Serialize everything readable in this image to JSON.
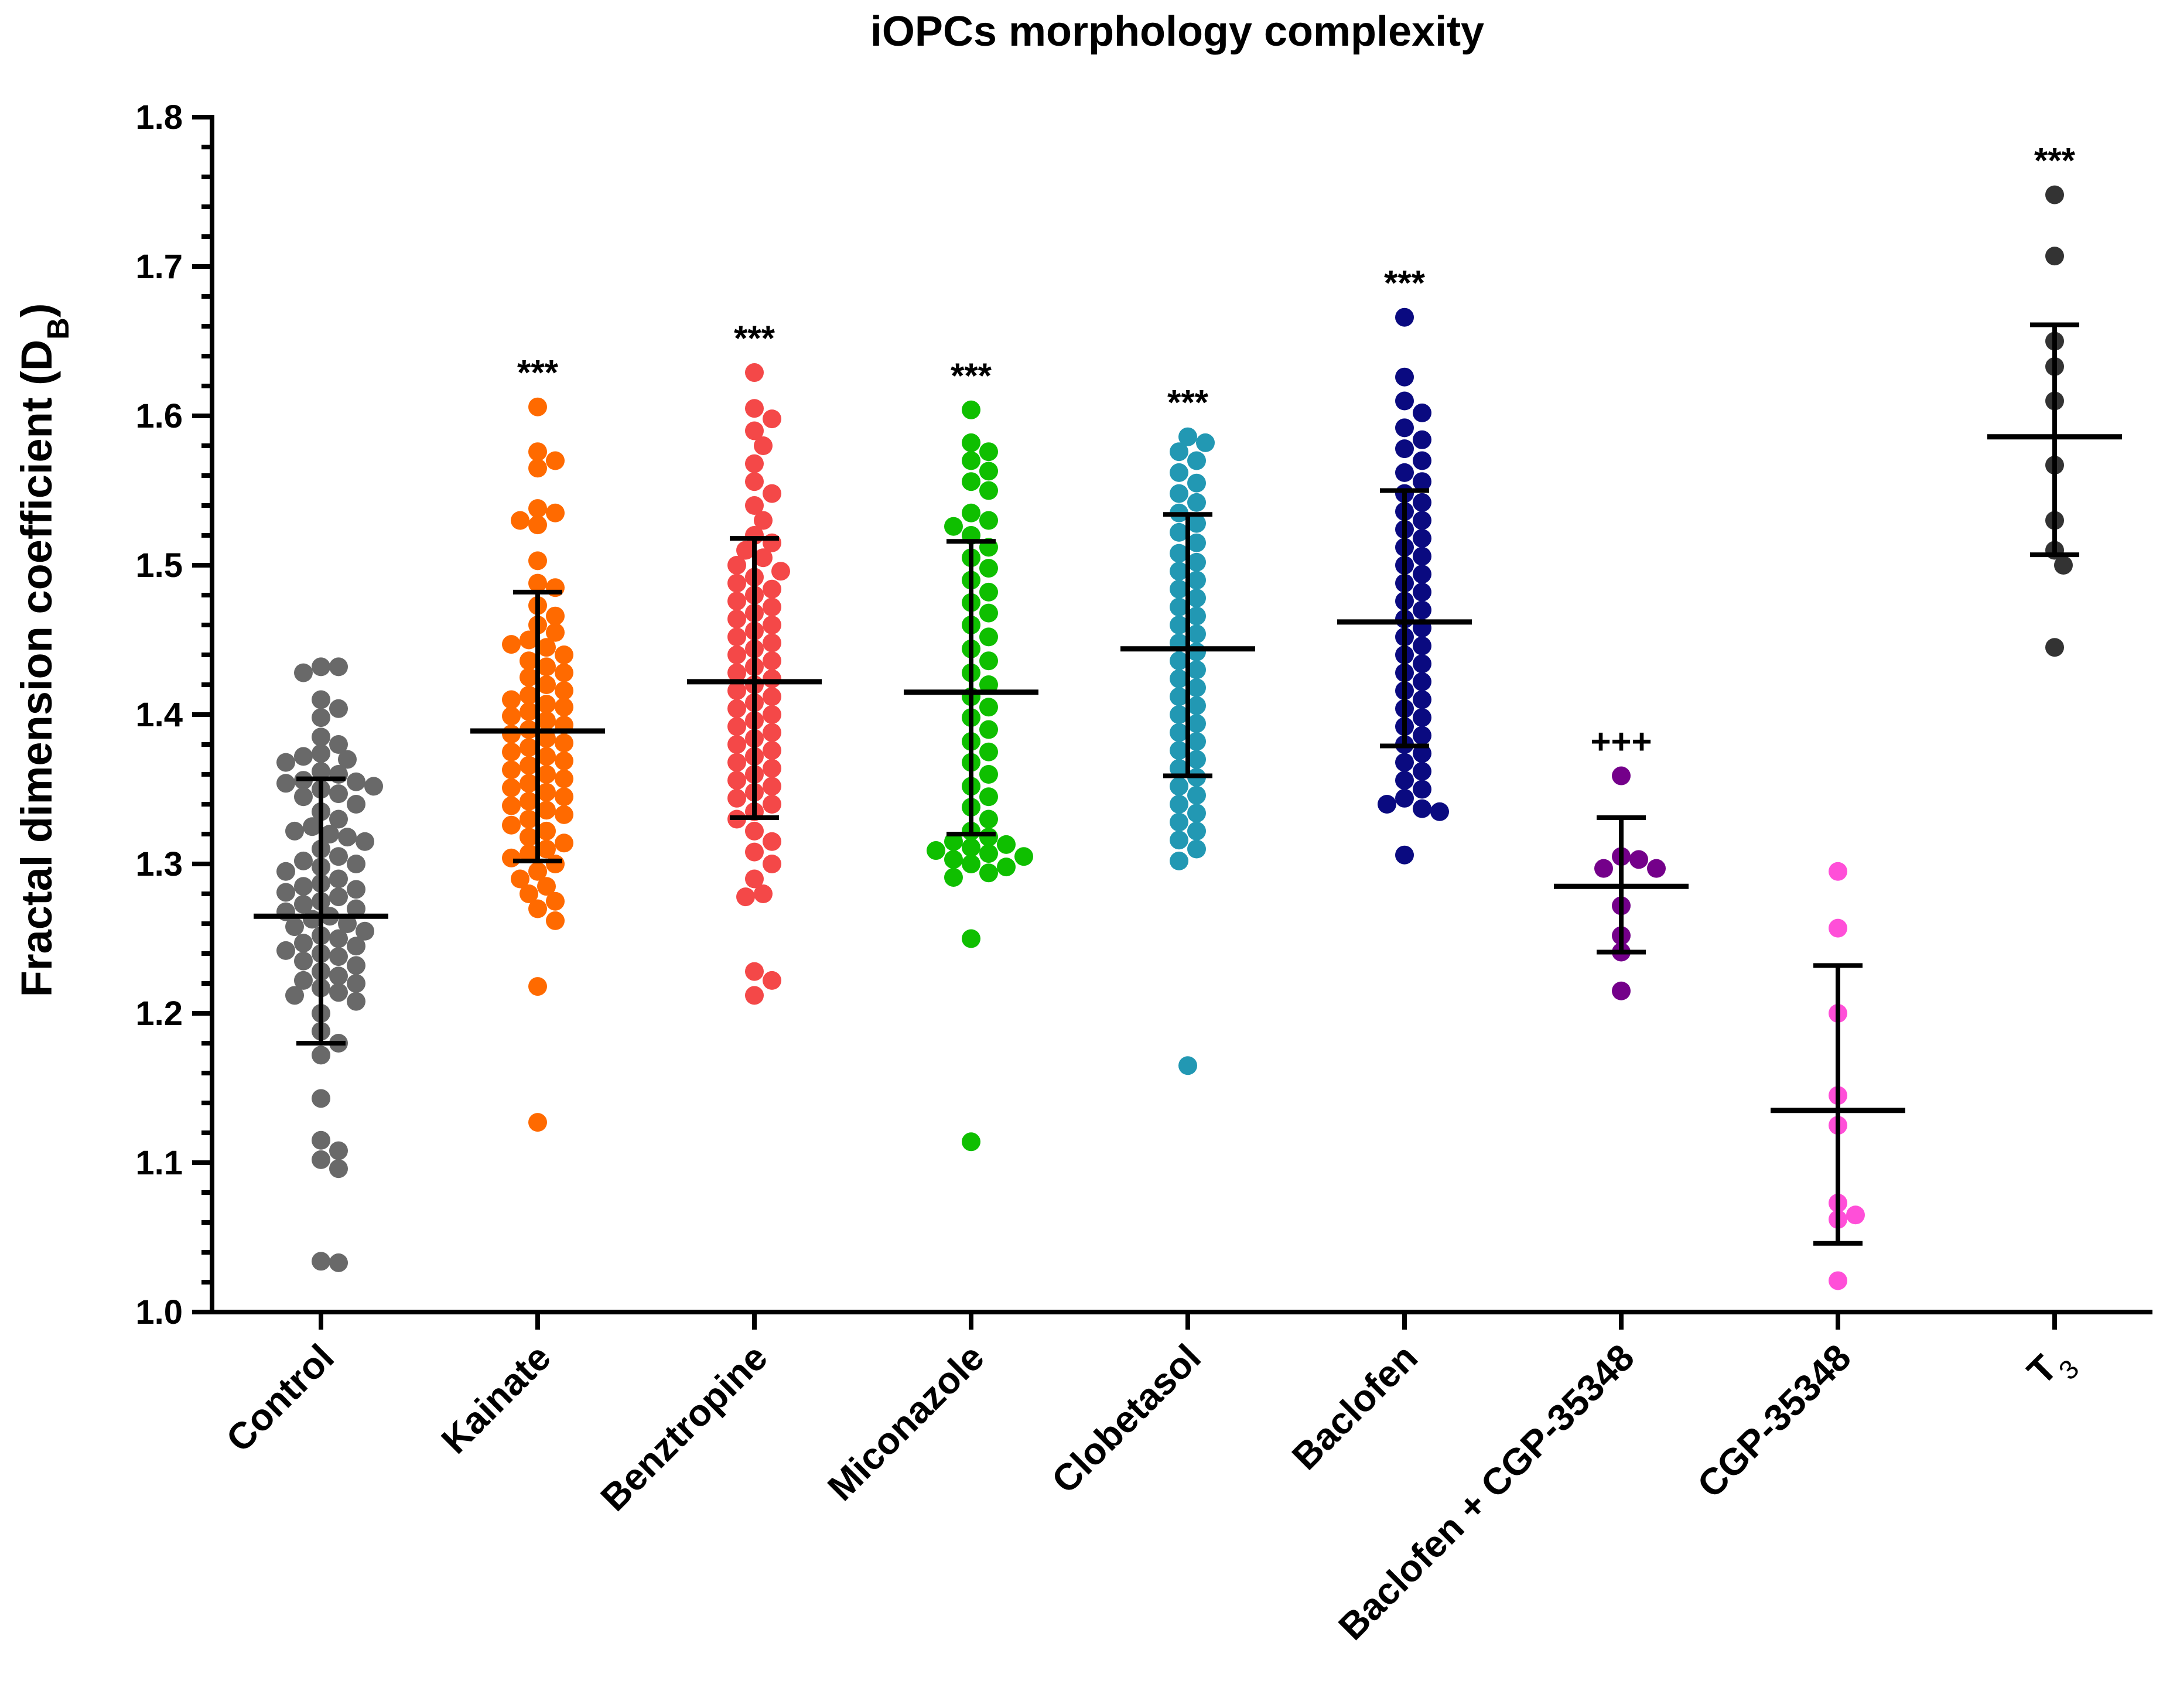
{
  "chart_data": {
    "type": "scatter",
    "title": "iOPCs morphology complexity",
    "ylabel": "Fractal dimension coefficient (D",
    "ylabel_sub": "B",
    "ylabel_close": ")",
    "ylim": [
      1.0,
      1.8
    ],
    "yticks": [
      "1.0",
      "1.1",
      "1.2",
      "1.3",
      "1.4",
      "1.5",
      "1.6",
      "1.7",
      "1.8"
    ],
    "grid": false,
    "legend": "none",
    "groups": [
      {
        "category": "Control",
        "color": "#696969",
        "significance": "",
        "mean": 1.265,
        "sd_low": 1.18,
        "sd_high": 1.357,
        "values": [
          1.432,
          1.432,
          1.428,
          1.41,
          1.404,
          1.398,
          1.385,
          1.38,
          1.374,
          1.372,
          1.37,
          1.368,
          1.362,
          1.36,
          1.356,
          1.355,
          1.354,
          1.352,
          1.35,
          1.347,
          1.345,
          1.34,
          1.335,
          1.33,
          1.325,
          1.322,
          1.32,
          1.318,
          1.315,
          1.31,
          1.305,
          1.302,
          1.3,
          1.298,
          1.295,
          1.29,
          1.287,
          1.285,
          1.283,
          1.281,
          1.278,
          1.275,
          1.273,
          1.27,
          1.268,
          1.265,
          1.263,
          1.26,
          1.258,
          1.255,
          1.252,
          1.25,
          1.247,
          1.245,
          1.242,
          1.24,
          1.238,
          1.235,
          1.232,
          1.228,
          1.225,
          1.222,
          1.22,
          1.217,
          1.214,
          1.212,
          1.208,
          1.2,
          1.188,
          1.18,
          1.172,
          1.143,
          1.115,
          1.108,
          1.102,
          1.096,
          1.034,
          1.033
        ]
      },
      {
        "category": "Kainate",
        "color": "#FF6A00",
        "significance": "***",
        "mean": 1.389,
        "sd_low": 1.302,
        "sd_high": 1.482,
        "values": [
          1.606,
          1.576,
          1.57,
          1.565,
          1.538,
          1.535,
          1.53,
          1.527,
          1.503,
          1.488,
          1.485,
          1.473,
          1.466,
          1.46,
          1.455,
          1.45,
          1.447,
          1.445,
          1.44,
          1.436,
          1.432,
          1.428,
          1.425,
          1.42,
          1.416,
          1.413,
          1.41,
          1.407,
          1.405,
          1.402,
          1.399,
          1.396,
          1.393,
          1.39,
          1.387,
          1.384,
          1.381,
          1.378,
          1.375,
          1.372,
          1.369,
          1.366,
          1.363,
          1.36,
          1.357,
          1.354,
          1.351,
          1.348,
          1.345,
          1.342,
          1.339,
          1.336,
          1.333,
          1.33,
          1.326,
          1.322,
          1.318,
          1.314,
          1.31,
          1.307,
          1.304,
          1.3,
          1.295,
          1.29,
          1.285,
          1.28,
          1.275,
          1.27,
          1.262,
          1.218,
          1.127
        ]
      },
      {
        "category": "Benztropine",
        "color": "#F44848",
        "significance": "***",
        "mean": 1.422,
        "sd_low": 1.331,
        "sd_high": 1.518,
        "values": [
          1.629,
          1.605,
          1.598,
          1.59,
          1.58,
          1.568,
          1.556,
          1.548,
          1.54,
          1.53,
          1.52,
          1.515,
          1.51,
          1.505,
          1.5,
          1.496,
          1.492,
          1.488,
          1.484,
          1.48,
          1.476,
          1.472,
          1.468,
          1.464,
          1.46,
          1.456,
          1.452,
          1.448,
          1.444,
          1.44,
          1.436,
          1.432,
          1.428,
          1.424,
          1.42,
          1.416,
          1.412,
          1.408,
          1.404,
          1.4,
          1.396,
          1.392,
          1.388,
          1.384,
          1.38,
          1.376,
          1.372,
          1.368,
          1.364,
          1.36,
          1.356,
          1.352,
          1.348,
          1.344,
          1.34,
          1.335,
          1.33,
          1.322,
          1.315,
          1.308,
          1.3,
          1.29,
          1.28,
          1.278,
          1.228,
          1.222,
          1.212
        ]
      },
      {
        "category": "Miconazole",
        "color": "#0FBF00",
        "significance": "***",
        "mean": 1.415,
        "sd_low": 1.32,
        "sd_high": 1.516,
        "values": [
          1.604,
          1.582,
          1.576,
          1.57,
          1.563,
          1.556,
          1.55,
          1.535,
          1.53,
          1.526,
          1.52,
          1.512,
          1.505,
          1.498,
          1.49,
          1.482,
          1.475,
          1.468,
          1.46,
          1.452,
          1.444,
          1.436,
          1.428,
          1.42,
          1.412,
          1.405,
          1.398,
          1.39,
          1.382,
          1.375,
          1.368,
          1.36,
          1.352,
          1.345,
          1.338,
          1.33,
          1.322,
          1.318,
          1.315,
          1.313,
          1.311,
          1.309,
          1.307,
          1.305,
          1.303,
          1.3,
          1.298,
          1.294,
          1.291,
          1.25,
          1.114
        ]
      },
      {
        "category": "Clobetasol",
        "color": "#2298B3",
        "significance": "***",
        "mean": 1.444,
        "sd_low": 1.359,
        "sd_high": 1.534,
        "values": [
          1.586,
          1.582,
          1.576,
          1.57,
          1.562,
          1.555,
          1.548,
          1.542,
          1.535,
          1.528,
          1.522,
          1.515,
          1.508,
          1.502,
          1.496,
          1.49,
          1.484,
          1.478,
          1.472,
          1.466,
          1.46,
          1.454,
          1.448,
          1.442,
          1.436,
          1.43,
          1.424,
          1.418,
          1.412,
          1.406,
          1.4,
          1.394,
          1.388,
          1.382,
          1.376,
          1.37,
          1.364,
          1.358,
          1.352,
          1.346,
          1.34,
          1.334,
          1.328,
          1.322,
          1.316,
          1.31,
          1.302,
          1.165
        ]
      },
      {
        "category": "Baclofen",
        "color": "#0A0A80",
        "significance": "***",
        "mean": 1.462,
        "sd_low": 1.379,
        "sd_high": 1.55,
        "values": [
          1.666,
          1.626,
          1.61,
          1.602,
          1.592,
          1.584,
          1.578,
          1.57,
          1.562,
          1.556,
          1.548,
          1.542,
          1.536,
          1.53,
          1.524,
          1.518,
          1.512,
          1.506,
          1.5,
          1.494,
          1.488,
          1.482,
          1.476,
          1.47,
          1.464,
          1.458,
          1.452,
          1.446,
          1.44,
          1.434,
          1.428,
          1.422,
          1.416,
          1.41,
          1.404,
          1.398,
          1.392,
          1.386,
          1.38,
          1.374,
          1.368,
          1.362,
          1.356,
          1.35,
          1.344,
          1.34,
          1.337,
          1.335,
          1.306
        ]
      },
      {
        "category": "Baclofen + CGP-35348",
        "color": "#74008A",
        "significance": "+++",
        "mean": 1.285,
        "sd_low": 1.241,
        "sd_high": 1.331,
        "values": [
          1.359,
          1.305,
          1.303,
          1.297,
          1.297,
          1.272,
          1.252,
          1.241,
          1.215
        ]
      },
      {
        "category": "CGP-35348",
        "color": "#FF4FD8",
        "significance": "",
        "mean": 1.135,
        "sd_low": 1.046,
        "sd_high": 1.232,
        "values": [
          1.295,
          1.257,
          1.2,
          1.145,
          1.125,
          1.073,
          1.065,
          1.062,
          1.021
        ]
      },
      {
        "category": "T",
        "category_sub": "3",
        "color": "#333333",
        "significance": "***",
        "mean": 1.586,
        "sd_low": 1.507,
        "sd_high": 1.661,
        "values": [
          1.748,
          1.707,
          1.65,
          1.633,
          1.61,
          1.567,
          1.53,
          1.51,
          1.5,
          1.445
        ]
      }
    ]
  }
}
